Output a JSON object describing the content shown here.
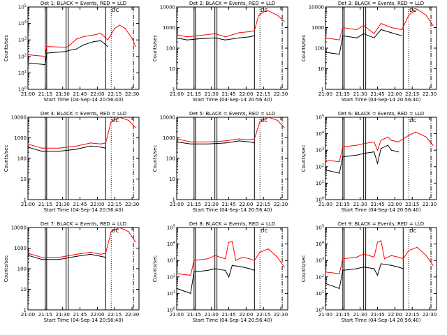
{
  "colors": {
    "events": "#000000",
    "lld": "#ff0000",
    "axes": "#000000"
  },
  "xlabel": "Start Time (04-Sep-14 20:56:40)",
  "ylabel": "Counts/sec",
  "x_ticks": [
    "21:00",
    "21:15",
    "21:30",
    "21:45",
    "22:00",
    "22:15",
    "22:30"
  ],
  "chart_data": [
    {
      "type": "line",
      "title": "Det 1: BLACK = Events, RED = LLD",
      "marker": "DC",
      "ylog": true,
      "y_ticks": [
        "10^0",
        "10^1",
        "10^2",
        "10^3",
        "10^4",
        "10^5"
      ],
      "ylim_exp": [
        0,
        5
      ],
      "series": [
        {
          "name": "Events",
          "color": "#000000",
          "points": [
            [
              21.0,
              1.6
            ],
            [
              21.25,
              1.5
            ],
            [
              21.27,
              2.2
            ],
            [
              21.55,
              2.3
            ],
            [
              21.58,
              2.35
            ],
            [
              21.7,
              2.45
            ],
            [
              21.8,
              2.7
            ],
            [
              21.95,
              2.9
            ],
            [
              22.05,
              2.95
            ],
            [
              22.15,
              2.6
            ]
          ]
        },
        {
          "name": "LLD",
          "color": "#ff0000",
          "points": [
            [
              21.0,
              2.1
            ],
            [
              21.25,
              2.0
            ],
            [
              21.27,
              2.6
            ],
            [
              21.55,
              2.55
            ],
            [
              21.58,
              2.6
            ],
            [
              21.7,
              3.05
            ],
            [
              21.8,
              3.2
            ],
            [
              21.95,
              3.3
            ],
            [
              22.05,
              3.4
            ],
            [
              22.15,
              3.0
            ],
            [
              22.25,
              3.7
            ],
            [
              22.32,
              3.9
            ],
            [
              22.4,
              3.7
            ],
            [
              22.5,
              3.1
            ],
            [
              22.55,
              2.6
            ]
          ]
        }
      ]
    },
    {
      "type": "line",
      "title": "Det 2: BLACK = Events, RED = LLD",
      "marker": "DC",
      "ylog": true,
      "y_ticks": [
        "1",
        "10",
        "100",
        "1000",
        "10000"
      ],
      "ylim_exp": [
        0,
        4
      ],
      "series": [
        {
          "name": "Events",
          "color": "#000000",
          "points": [
            [
              21.0,
              2.5
            ],
            [
              21.15,
              2.4
            ],
            [
              21.3,
              2.45
            ],
            [
              21.55,
              2.5
            ],
            [
              21.7,
              2.4
            ],
            [
              21.9,
              2.5
            ],
            [
              22.05,
              2.55
            ],
            [
              22.12,
              2.6
            ]
          ]
        },
        {
          "name": "LLD",
          "color": "#ff0000",
          "points": [
            [
              21.0,
              2.65
            ],
            [
              21.15,
              2.55
            ],
            [
              21.3,
              2.6
            ],
            [
              21.55,
              2.7
            ],
            [
              21.7,
              2.55
            ],
            [
              21.9,
              2.75
            ],
            [
              22.05,
              2.8
            ],
            [
              22.12,
              2.85
            ],
            [
              22.18,
              3.6
            ],
            [
              22.3,
              3.85
            ],
            [
              22.45,
              3.6
            ],
            [
              22.55,
              3.3
            ]
          ]
        }
      ]
    },
    {
      "type": "line",
      "title": "Det 3: BLACK = Events, RED = LLD",
      "marker": "DC",
      "ylog": true,
      "y_ticks": [
        "1",
        "10",
        "100",
        "1000",
        "10000"
      ],
      "ylim_exp": [
        0,
        4
      ],
      "series": [
        {
          "name": "Events",
          "color": "#000000",
          "points": [
            [
              21.0,
              1.8
            ],
            [
              21.2,
              1.7
            ],
            [
              21.25,
              2.6
            ],
            [
              21.45,
              2.5
            ],
            [
              21.55,
              2.7
            ],
            [
              21.7,
              2.5
            ],
            [
              21.8,
              2.9
            ],
            [
              21.95,
              2.75
            ],
            [
              22.1,
              2.6
            ]
          ]
        },
        {
          "name": "LLD",
          "color": "#ff0000",
          "points": [
            [
              21.0,
              2.5
            ],
            [
              21.2,
              2.4
            ],
            [
              21.25,
              3.0
            ],
            [
              21.45,
              2.9
            ],
            [
              21.55,
              3.1
            ],
            [
              21.7,
              2.7
            ],
            [
              21.8,
              3.2
            ],
            [
              21.95,
              3.0
            ],
            [
              22.1,
              2.9
            ],
            [
              22.2,
              3.6
            ],
            [
              22.32,
              3.9
            ],
            [
              22.45,
              3.6
            ],
            [
              22.55,
              3.1
            ]
          ]
        }
      ]
    },
    {
      "type": "line",
      "title": "Det 4: BLACK = Events, RED = LLD",
      "marker": "DC",
      "ylog": true,
      "y_ticks": [
        "1",
        "10",
        "100",
        "1000",
        "10000"
      ],
      "ylim_exp": [
        0,
        4
      ],
      "series": [
        {
          "name": "Events",
          "color": "#000000",
          "points": [
            [
              21.0,
              2.55
            ],
            [
              21.2,
              2.35
            ],
            [
              21.45,
              2.35
            ],
            [
              21.7,
              2.45
            ],
            [
              21.9,
              2.6
            ],
            [
              22.05,
              2.55
            ],
            [
              22.12,
              2.5
            ]
          ]
        },
        {
          "name": "LLD",
          "color": "#ff0000",
          "points": [
            [
              21.0,
              2.7
            ],
            [
              21.2,
              2.5
            ],
            [
              21.45,
              2.5
            ],
            [
              21.7,
              2.6
            ],
            [
              21.9,
              2.75
            ],
            [
              22.05,
              2.7
            ],
            [
              22.12,
              2.75
            ],
            [
              22.2,
              3.8
            ],
            [
              22.32,
              4.0
            ],
            [
              22.45,
              3.85
            ],
            [
              22.55,
              3.5
            ]
          ]
        }
      ]
    },
    {
      "type": "line",
      "title": "Det 5: BLACK = Events, RED = LLD",
      "marker": "DC",
      "ylog": true,
      "y_ticks": [
        "1",
        "10",
        "100",
        "1000",
        "10000"
      ],
      "ylim_exp": [
        0,
        4
      ],
      "series": [
        {
          "name": "Events",
          "color": "#000000",
          "points": [
            [
              21.0,
              2.8
            ],
            [
              21.2,
              2.7
            ],
            [
              21.45,
              2.7
            ],
            [
              21.7,
              2.75
            ],
            [
              21.9,
              2.85
            ],
            [
              22.05,
              2.8
            ],
            [
              22.12,
              2.75
            ]
          ]
        },
        {
          "name": "LLD",
          "color": "#ff0000",
          "points": [
            [
              21.0,
              2.95
            ],
            [
              21.2,
              2.8
            ],
            [
              21.45,
              2.8
            ],
            [
              21.7,
              2.85
            ],
            [
              21.9,
              2.95
            ],
            [
              22.05,
              2.9
            ],
            [
              22.12,
              2.95
            ],
            [
              22.2,
              3.8
            ],
            [
              22.32,
              4.0
            ],
            [
              22.45,
              3.85
            ],
            [
              22.55,
              3.5
            ]
          ]
        }
      ]
    },
    {
      "type": "line",
      "title": "Det 6: BLACK = Events, RED = LLD",
      "marker": "DC",
      "ylog": true,
      "y_ticks": [
        "10^0",
        "10^1",
        "10^2",
        "10^3",
        "10^4",
        "10^5"
      ],
      "ylim_exp": [
        0,
        5
      ],
      "series": [
        {
          "name": "Events",
          "color": "#000000",
          "points": [
            [
              21.0,
              1.8
            ],
            [
              21.2,
              1.6
            ],
            [
              21.25,
              2.6
            ],
            [
              21.45,
              2.7
            ],
            [
              21.55,
              2.8
            ],
            [
              21.7,
              2.9
            ],
            [
              21.75,
              2.2
            ],
            [
              21.8,
              3.1
            ],
            [
              21.9,
              3.3
            ],
            [
              21.95,
              3.0
            ],
            [
              22.05,
              2.9
            ]
          ]
        },
        {
          "name": "LLD",
          "color": "#ff0000",
          "points": [
            [
              21.0,
              2.4
            ],
            [
              21.2,
              2.3
            ],
            [
              21.25,
              3.2
            ],
            [
              21.45,
              3.3
            ],
            [
              21.55,
              3.4
            ],
            [
              21.7,
              3.5
            ],
            [
              21.75,
              3.0
            ],
            [
              21.8,
              3.6
            ],
            [
              21.9,
              3.8
            ],
            [
              21.95,
              3.6
            ],
            [
              22.05,
              3.5
            ],
            [
              22.2,
              3.9
            ],
            [
              22.3,
              4.1
            ],
            [
              22.45,
              3.8
            ],
            [
              22.55,
              3.3
            ]
          ]
        }
      ]
    },
    {
      "type": "line",
      "title": "Det 7: BLACK = Events, RED = LLD",
      "marker": "DC",
      "ylog": true,
      "y_ticks": [
        "1",
        "10",
        "100",
        "1000",
        "10000"
      ],
      "ylim_exp": [
        0,
        4
      ],
      "series": [
        {
          "name": "Events",
          "color": "#000000",
          "points": [
            [
              21.0,
              2.65
            ],
            [
              21.2,
              2.45
            ],
            [
              21.45,
              2.45
            ],
            [
              21.7,
              2.6
            ],
            [
              21.9,
              2.7
            ],
            [
              22.05,
              2.6
            ],
            [
              22.12,
              2.55
            ]
          ]
        },
        {
          "name": "LLD",
          "color": "#ff0000",
          "points": [
            [
              21.0,
              2.75
            ],
            [
              21.2,
              2.55
            ],
            [
              21.45,
              2.55
            ],
            [
              21.7,
              2.7
            ],
            [
              21.9,
              2.8
            ],
            [
              22.05,
              2.7
            ],
            [
              22.12,
              2.75
            ],
            [
              22.2,
              3.8
            ],
            [
              22.32,
              4.0
            ],
            [
              22.45,
              3.8
            ],
            [
              22.55,
              3.3
            ]
          ]
        }
      ]
    },
    {
      "type": "line",
      "title": "Det 8: BLACK = Events, RED = LLD",
      "marker": "DC",
      "ylog": true,
      "y_ticks": [
        "10^0",
        "10^1",
        "10^2",
        "10^3",
        "10^4",
        "10^5"
      ],
      "ylim_exp": [
        0,
        5
      ],
      "series": [
        {
          "name": "Events",
          "color": "#000000",
          "points": [
            [
              21.0,
              1.3
            ],
            [
              21.2,
              1.0
            ],
            [
              21.25,
              2.3
            ],
            [
              21.45,
              2.4
            ],
            [
              21.55,
              2.5
            ],
            [
              21.7,
              2.4
            ],
            [
              21.75,
              2.0
            ],
            [
              21.8,
              2.7
            ],
            [
              21.95,
              2.6
            ],
            [
              22.05,
              2.5
            ],
            [
              22.12,
              2.4
            ]
          ]
        },
        {
          "name": "LLD",
          "color": "#ff0000",
          "points": [
            [
              21.0,
              2.2
            ],
            [
              21.2,
              2.1
            ],
            [
              21.25,
              3.0
            ],
            [
              21.45,
              3.1
            ],
            [
              21.55,
              3.3
            ],
            [
              21.7,
              3.1
            ],
            [
              21.75,
              4.1
            ],
            [
              21.8,
              4.15
            ],
            [
              21.85,
              3.0
            ],
            [
              21.95,
              3.2
            ],
            [
              22.05,
              3.1
            ],
            [
              22.12,
              3.0
            ],
            [
              22.2,
              3.5
            ],
            [
              22.32,
              3.7
            ],
            [
              22.45,
              3.2
            ],
            [
              22.55,
              2.6
            ]
          ]
        }
      ]
    },
    {
      "type": "line",
      "title": "Det 9: BLACK = Events, RED = LLD",
      "marker": "DC",
      "ylog": true,
      "y_ticks": [
        "10^0",
        "10^1",
        "10^2",
        "10^3",
        "10^4",
        "10^5"
      ],
      "ylim_exp": [
        0,
        5
      ],
      "series": [
        {
          "name": "Events",
          "color": "#000000",
          "points": [
            [
              21.0,
              1.6
            ],
            [
              21.2,
              1.3
            ],
            [
              21.25,
              2.4
            ],
            [
              21.45,
              2.5
            ],
            [
              21.55,
              2.6
            ],
            [
              21.7,
              2.5
            ],
            [
              21.75,
              2.1
            ],
            [
              21.8,
              2.8
            ],
            [
              21.95,
              2.7
            ],
            [
              22.05,
              2.6
            ],
            [
              22.12,
              2.5
            ]
          ]
        },
        {
          "name": "LLD",
          "color": "#ff0000",
          "points": [
            [
              21.0,
              2.3
            ],
            [
              21.2,
              2.2
            ],
            [
              21.25,
              3.1
            ],
            [
              21.45,
              3.2
            ],
            [
              21.55,
              3.4
            ],
            [
              21.7,
              3.2
            ],
            [
              21.75,
              4.1
            ],
            [
              21.8,
              4.2
            ],
            [
              21.85,
              3.1
            ],
            [
              21.95,
              3.3
            ],
            [
              22.05,
              3.2
            ],
            [
              22.12,
              3.1
            ],
            [
              22.2,
              3.6
            ],
            [
              22.32,
              3.8
            ],
            [
              22.45,
              3.3
            ],
            [
              22.55,
              2.7
            ]
          ]
        }
      ]
    }
  ]
}
